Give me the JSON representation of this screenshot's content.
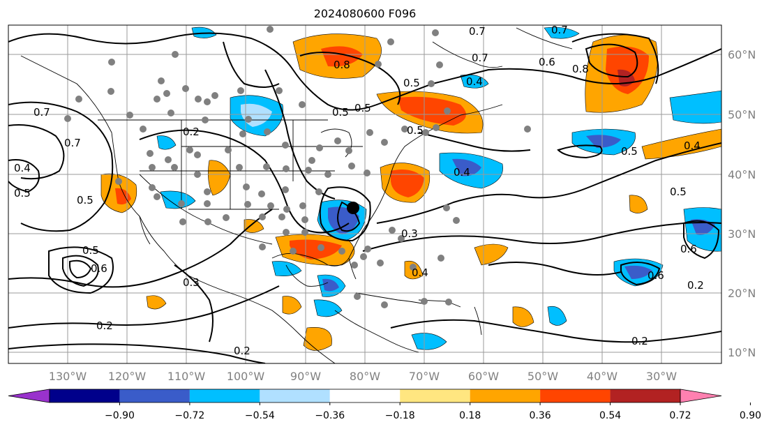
{
  "title": "2024080600 F096",
  "lat_labels": [
    "60°N",
    "50°N",
    "40°N",
    "30°N",
    "20°N",
    "10°N"
  ],
  "lon_labels": [
    "130°W",
    "120°W",
    "110°W",
    "100°W",
    "90°W",
    "80°W",
    "70°W",
    "60°W",
    "50°W",
    "40°W",
    "30°W"
  ],
  "colorbar": {
    "ticks": [
      "−0.90",
      "−0.72",
      "−0.54",
      "−0.36",
      "−0.18",
      "0.18",
      "0.36",
      "0.54",
      "0.72",
      "0.90"
    ],
    "colors": [
      "#9932cc",
      "#00008b",
      "#3a5cc9",
      "#00bfff",
      "#b0e0ff",
      "#ffffff",
      "#ffe680",
      "#ffa500",
      "#ff4500",
      "#b22222",
      "#ff80b0"
    ]
  },
  "contour_labels": [
    "0.7",
    "0.8",
    "0.7",
    "0.6",
    "0.8",
    "0.5",
    "0.4",
    "0.5",
    "0.7",
    "0.2",
    "0.5",
    "0.4",
    "0.5",
    "0.7",
    "0.4",
    "0.5",
    "0.5",
    "0.3",
    "0.5",
    "0.6",
    "0.3",
    "0.2",
    "0.2",
    "0.2",
    "0.5",
    "0.4",
    "0.6",
    "0.6",
    "0.2",
    "0.4",
    "0.7",
    "0.5"
  ]
}
